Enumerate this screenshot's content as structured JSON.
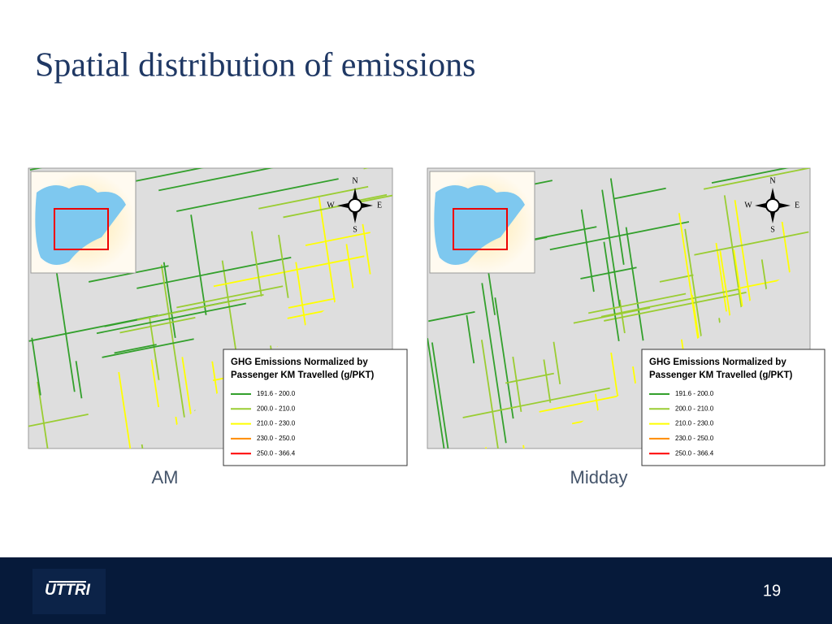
{
  "title": "Spatial distribution of emissions",
  "maps": [
    {
      "caption": "AM",
      "compass": {
        "n": "N",
        "w": "W",
        "e": "E",
        "s": "S"
      },
      "legend": {
        "title_lines": [
          "GHG Emissions Normalized by",
          "Passenger KM Travelled (g/PKT)"
        ],
        "items": [
          {
            "label": "191.6 - 200.0",
            "color": "#33a02c"
          },
          {
            "label": "200.0 - 210.0",
            "color": "#9acd32"
          },
          {
            "label": "210.0 - 230.0",
            "color": "#ffff00"
          },
          {
            "label": "230.0 - 250.0",
            "color": "#ff8c00"
          },
          {
            "label": "250.0 - 366.4",
            "color": "#ff0000"
          }
        ]
      }
    },
    {
      "caption": "Midday",
      "compass": {
        "n": "N",
        "w": "W",
        "e": "E",
        "s": "S"
      },
      "legend": {
        "title_lines": [
          "GHG Emissions Normalized by",
          "Passenger KM Travelled (g/PKT)"
        ],
        "items": [
          {
            "label": "191.6 - 200.0",
            "color": "#33a02c"
          },
          {
            "label": "200.0 - 210.0",
            "color": "#9acd32"
          },
          {
            "label": "210.0 - 230.0",
            "color": "#ffff00"
          },
          {
            "label": "230.0 - 250.0",
            "color": "#ff8c00"
          },
          {
            "label": "250.0 - 366.4",
            "color": "#ff0000"
          }
        ]
      }
    }
  ],
  "footer": {
    "logo": "UTTRI",
    "page": "19"
  }
}
